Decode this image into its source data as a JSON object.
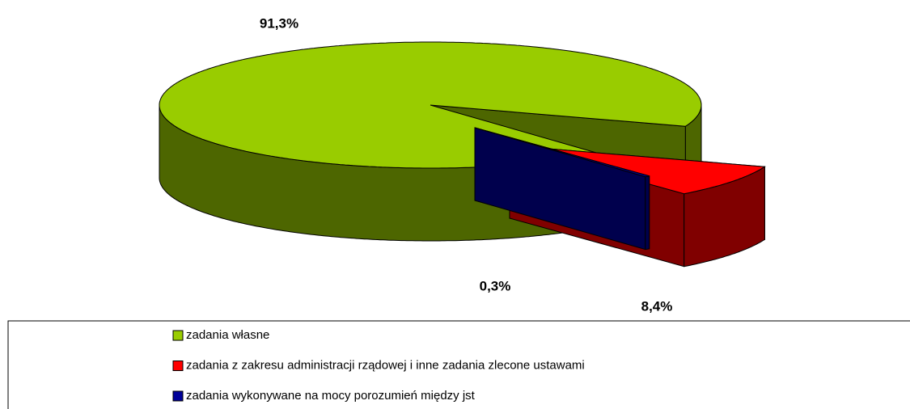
{
  "chart_data": {
    "type": "pie",
    "categories": [
      "zadania własne",
      "zadania z zakresu administracji rządowej i inne zadania zlecone ustawami",
      "zadania wykonywane na mocy porozumień między jst"
    ],
    "values": [
      91.3,
      8.4,
      0.3
    ],
    "value_labels": [
      "91,3%",
      "8,4%",
      "0,3%"
    ],
    "colors": [
      "#99cc00",
      "#ff0000",
      "#000099"
    ]
  }
}
